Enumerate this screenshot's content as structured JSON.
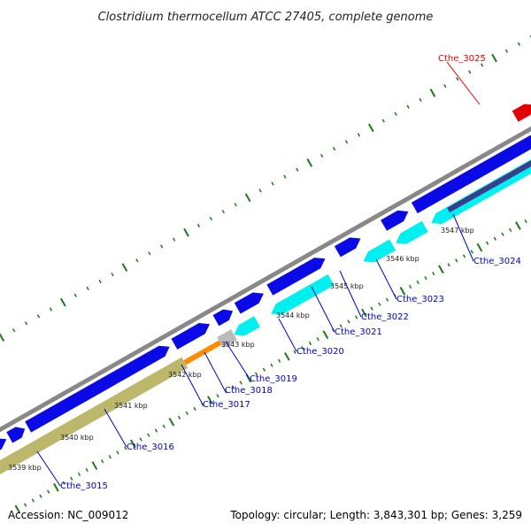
{
  "title": "Clostridium thermocellum ATCC 27405, complete genome",
  "footer": {
    "accession": "Accession: NC_009012",
    "topology": "Topology: circular; Length: 3,843,301 bp; Genes: 3,259"
  },
  "colors": {
    "backbone": "#888888",
    "cds_forward": "#0a0ae6",
    "cds_reverse": "#00f0f0",
    "cds_reverse_dark": "#3c3c8c",
    "rna": "#bdb76b",
    "pseudo": "#ff8c00",
    "other": "#bbbbbb",
    "highlight": "#e00000",
    "tick": "#1a7a1a"
  },
  "scale_labels": [
    "3539 kbp",
    "3540 kbp",
    "3541 kbp",
    "3542 kbp",
    "3543 kbp",
    "3544 kbp",
    "3545 kbp",
    "3546 kbp",
    "3547 kbp"
  ],
  "genes": [
    {
      "name": "Cthe_3015",
      "color": "blue"
    },
    {
      "name": "Cthe_3016",
      "color": "blue"
    },
    {
      "name": "Cthe_3017",
      "color": "blue"
    },
    {
      "name": "Cthe_3018",
      "color": "blue"
    },
    {
      "name": "Cthe_3019",
      "color": "blue"
    },
    {
      "name": "Cthe_3020",
      "color": "blue"
    },
    {
      "name": "Cthe_3021",
      "color": "blue"
    },
    {
      "name": "Cthe_3022",
      "color": "blue"
    },
    {
      "name": "Cthe_3023",
      "color": "blue"
    },
    {
      "name": "Cthe_3024",
      "color": "blue"
    },
    {
      "name": "Cthe_3025",
      "color": "red"
    }
  ]
}
